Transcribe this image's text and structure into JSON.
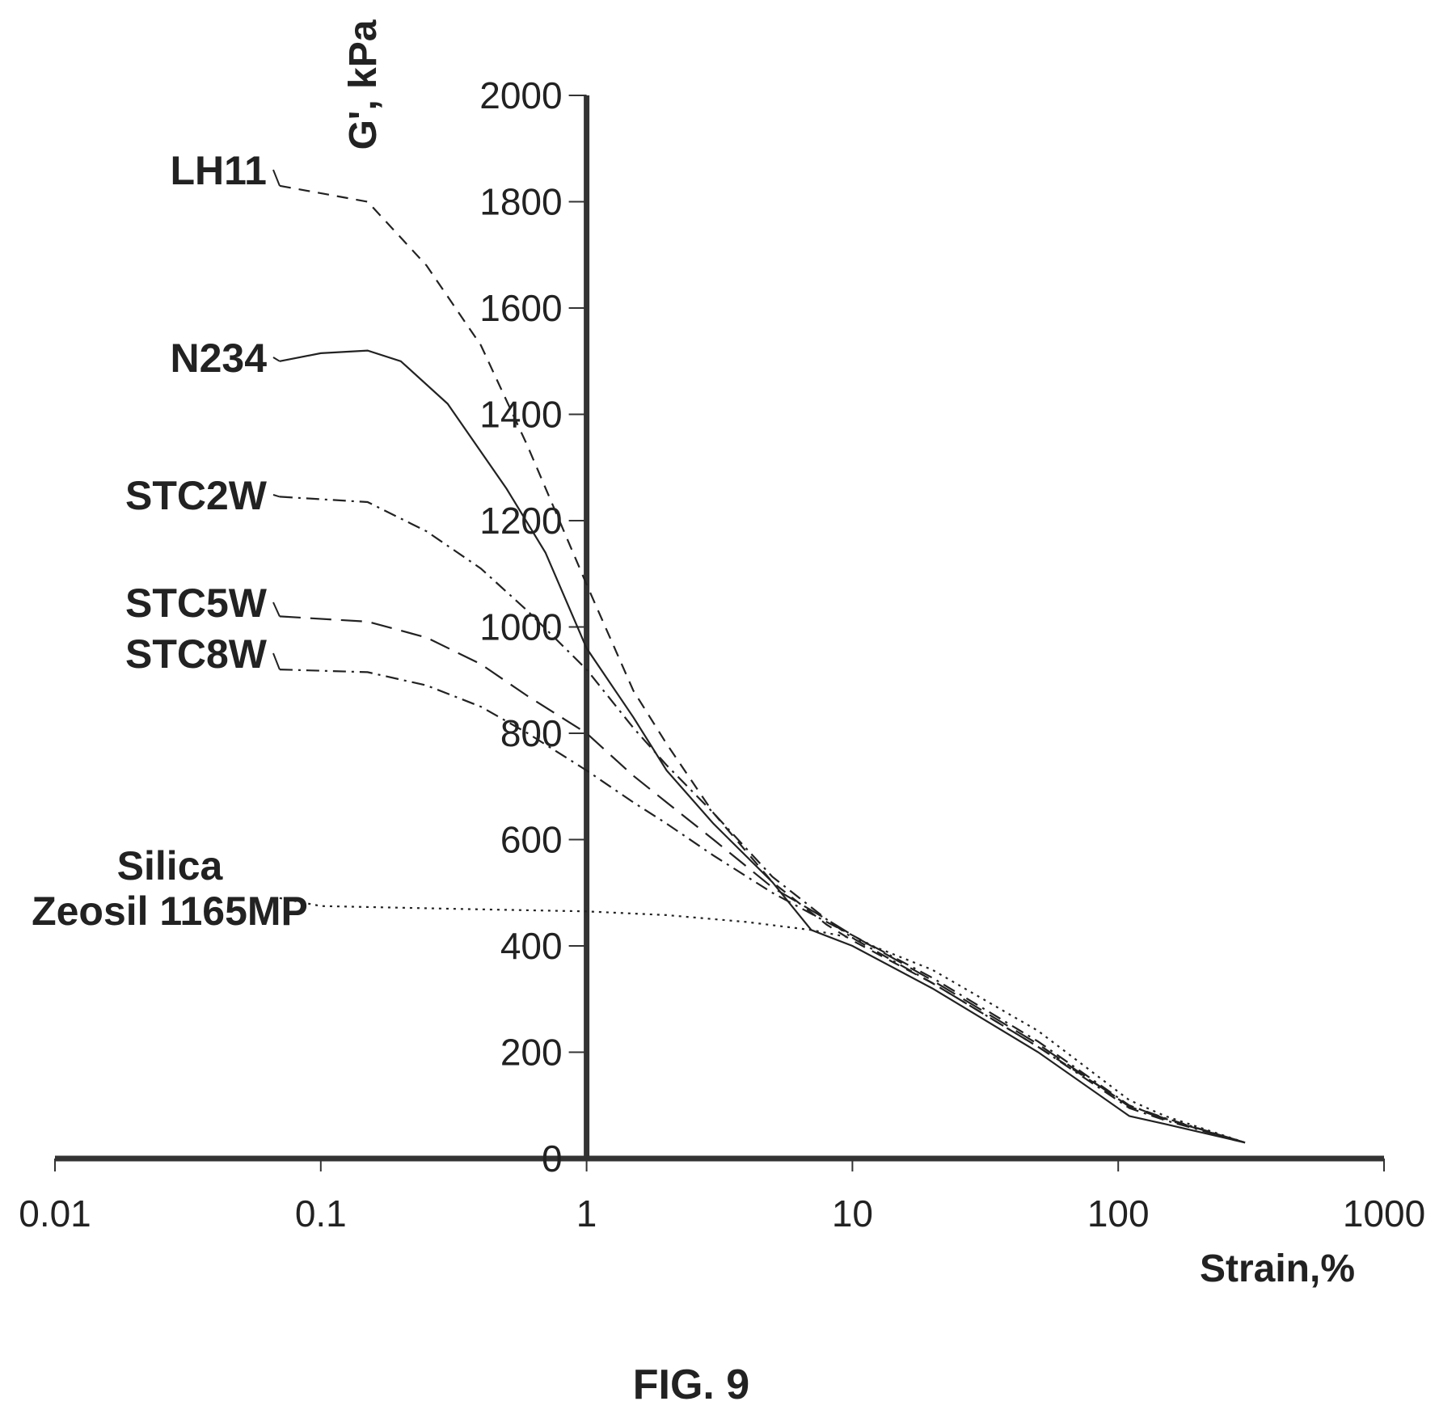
{
  "chart_data": {
    "type": "line",
    "x_scale": "log",
    "xlabel": "Strain,%",
    "ylabel": "G', kPa",
    "xlim": [
      0.01,
      1000
    ],
    "ylim": [
      0,
      2000
    ],
    "x_ticks": [
      "0.01",
      "0.1",
      "1",
      "10",
      "100",
      "1000"
    ],
    "y_ticks": [
      "0",
      "200",
      "400",
      "600",
      "800",
      "1000",
      "1200",
      "1400",
      "1600",
      "1800",
      "2000"
    ],
    "grid": false,
    "series": [
      {
        "name": "LH11",
        "dash": "dashed",
        "x": [
          0.07,
          0.15,
          0.25,
          0.4,
          0.6,
          1,
          1.5,
          2,
          3,
          5,
          8,
          10,
          20,
          50,
          110,
          150,
          300
        ],
        "y": [
          1830,
          1800,
          1680,
          1530,
          1340,
          1080,
          880,
          780,
          650,
          520,
          440,
          410,
          330,
          210,
          100,
          75,
          30
        ]
      },
      {
        "name": "N234",
        "dash": "solid",
        "x": [
          0.07,
          0.1,
          0.15,
          0.2,
          0.3,
          0.5,
          0.7,
          1,
          1.5,
          2,
          3,
          5,
          7,
          10,
          20,
          50,
          110,
          150,
          300
        ],
        "y": [
          1500,
          1515,
          1520,
          1500,
          1420,
          1260,
          1140,
          960,
          830,
          730,
          630,
          520,
          430,
          400,
          320,
          200,
          80,
          65,
          30
        ]
      },
      {
        "name": "STC2W",
        "dash": "dash-dot",
        "x": [
          0.07,
          0.15,
          0.25,
          0.4,
          0.6,
          1,
          1.5,
          2,
          3,
          5,
          8,
          10,
          20,
          50,
          110,
          150,
          300
        ],
        "y": [
          1245,
          1235,
          1180,
          1110,
          1030,
          920,
          810,
          740,
          650,
          530,
          450,
          415,
          330,
          210,
          95,
          72,
          30
        ]
      },
      {
        "name": "STC5W",
        "dash": "long-dash",
        "x": [
          0.07,
          0.15,
          0.25,
          0.4,
          0.6,
          1,
          1.5,
          2,
          3,
          5,
          8,
          10,
          20,
          50,
          110,
          150,
          300
        ],
        "y": [
          1020,
          1010,
          980,
          930,
          870,
          800,
          720,
          670,
          600,
          510,
          450,
          420,
          335,
          215,
          98,
          74,
          30
        ]
      },
      {
        "name": "STC8W",
        "dash": "dash-dot",
        "x": [
          0.07,
          0.15,
          0.25,
          0.4,
          0.6,
          1,
          1.5,
          2,
          3,
          5,
          8,
          10,
          20,
          50,
          110,
          150,
          300
        ],
        "y": [
          920,
          915,
          890,
          850,
          800,
          730,
          670,
          630,
          570,
          500,
          445,
          420,
          340,
          220,
          100,
          76,
          30
        ]
      },
      {
        "name": "Silica\nZeosil 1165MP",
        "dash": "dotted",
        "x": [
          0.07,
          0.1,
          0.3,
          1,
          2,
          4,
          7,
          10,
          20,
          50,
          110,
          150,
          300
        ],
        "y": [
          490,
          475,
          470,
          465,
          458,
          445,
          430,
          415,
          355,
          240,
          110,
          80,
          30
        ]
      }
    ],
    "label_lines": [
      "Silica",
      "Zeosil 1165MP"
    ]
  },
  "figure_caption": "FIG. 9"
}
